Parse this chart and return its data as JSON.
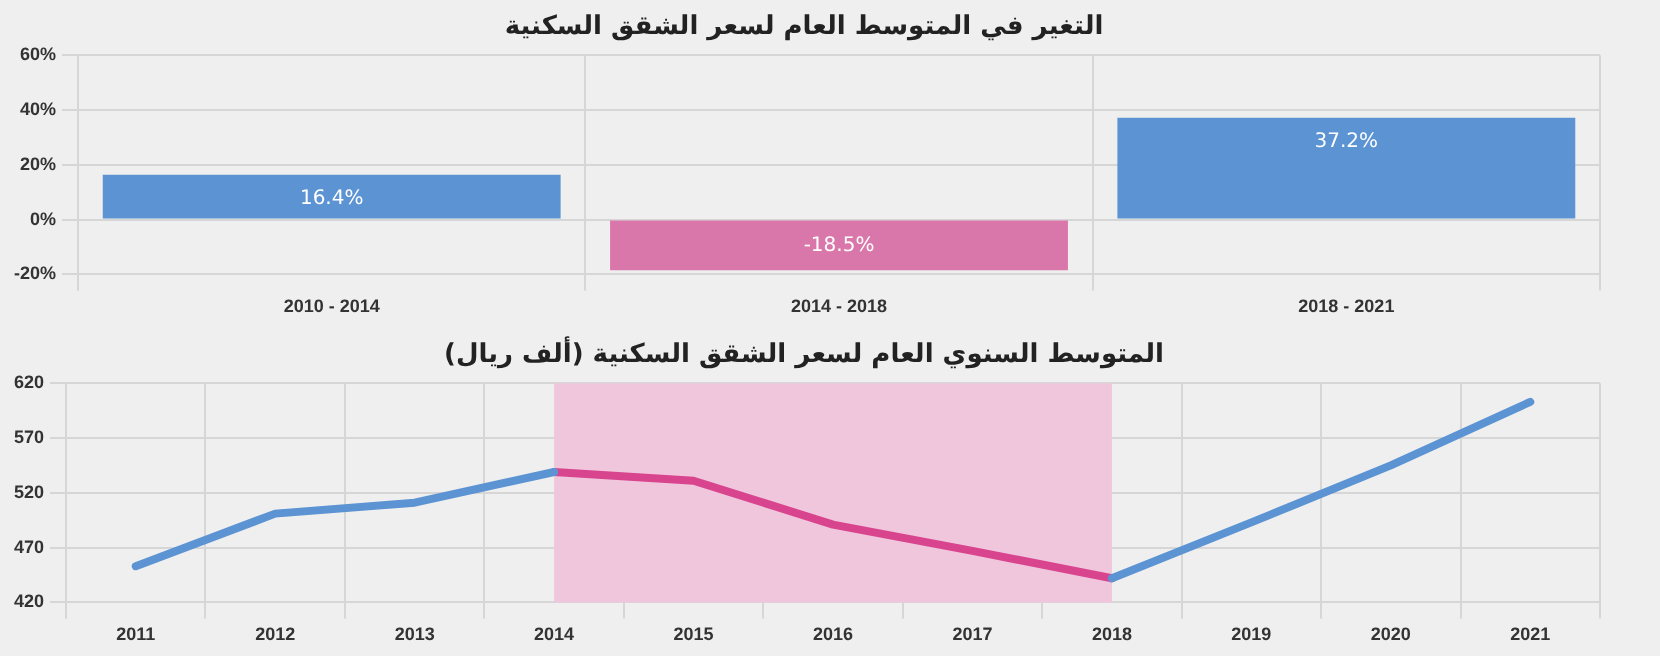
{
  "chart_data": [
    {
      "type": "bar",
      "title": "التغير في المتوسط العام لسعر الشقق السكنية",
      "categories": [
        "2010 - 2014",
        "2014 - 2018",
        "2018 - 2021"
      ],
      "values": [
        16.4,
        -18.5,
        37.2
      ],
      "colors": [
        "#5b93d3",
        "#d977aa",
        "#5b93d3"
      ],
      "value_labels": [
        "16.4%",
        "-18.5%",
        "37.2%"
      ],
      "ylim": [
        -20,
        60
      ],
      "yticks": [
        {
          "value": -20,
          "label": "-20%"
        },
        {
          "value": 0,
          "label": "0%"
        },
        {
          "value": 20,
          "label": "20%"
        },
        {
          "value": 40,
          "label": "40%"
        },
        {
          "value": 60,
          "label": "60%"
        }
      ],
      "grid": true,
      "legend": false
    },
    {
      "type": "line",
      "title": "المتوسط السنوي العام لسعر الشقق السكنية (ألف ريال)",
      "categories": [
        "2011",
        "2012",
        "2013",
        "2014",
        "2015",
        "2016",
        "2017",
        "2018",
        "2019",
        "2020",
        "2021"
      ],
      "series": [
        {
          "color": "#5b93d3",
          "values": [
            453,
            501,
            511,
            539,
            null,
            null,
            null,
            442,
            493,
            545,
            603
          ]
        },
        {
          "color": "#d9448e",
          "values": [
            null,
            null,
            null,
            539,
            531,
            491,
            467,
            442,
            null,
            null,
            null
          ]
        }
      ],
      "bands": [
        {
          "axis": "x",
          "from": "2014",
          "to": "2018",
          "color": "#f0c6dc"
        }
      ],
      "ylim": [
        420,
        620
      ],
      "yticks": [
        420,
        470,
        520,
        570,
        620
      ],
      "grid": true,
      "legend": false,
      "marker": "none"
    }
  ]
}
